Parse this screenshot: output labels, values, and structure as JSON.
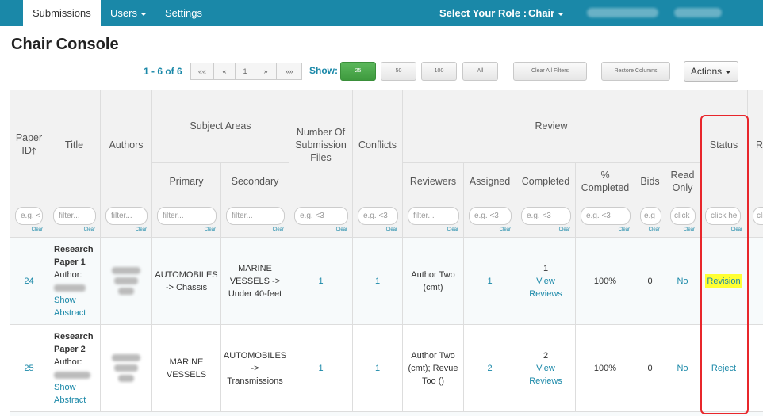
{
  "nav": {
    "tabs": [
      "Submissions",
      "Users",
      "Settings"
    ],
    "role_label": "Select Your Role :",
    "role_value": "Chair"
  },
  "page": {
    "title": "Chair Console"
  },
  "pager": {
    "range": "1 - 6 of 6",
    "first": "««",
    "prev": "«",
    "current": "1",
    "next": "»",
    "last": "»»"
  },
  "show": {
    "label": "Show:",
    "options": [
      "25",
      "50",
      "100",
      "All"
    ],
    "selected": "25"
  },
  "toolbar": {
    "clear_filters": "Clear All Filters",
    "restore_columns": "Restore Columns",
    "actions": "Actions"
  },
  "table": {
    "headers": {
      "paper_id": "Paper ID",
      "title": "Title",
      "authors": "Authors",
      "subject_areas": "Subject Areas",
      "primary": "Primary",
      "secondary": "Secondary",
      "num_files": "Number Of Submission Files",
      "conflicts": "Conflicts",
      "review": "Review",
      "reviewers": "Reviewers",
      "assigned": "Assigned",
      "completed": "Completed",
      "pct_completed": "% Completed",
      "bids": "Bids",
      "read_only": "Read Only",
      "status": "Status",
      "partial_next": "R Su"
    },
    "filters": {
      "paper_id": "e.g. <",
      "title": "filter...",
      "authors": "filter...",
      "primary": "filter...",
      "secondary": "filter...",
      "num_files": "e.g. <3",
      "conflicts": "e.g. <3",
      "reviewers": "filter...",
      "assigned": "e.g. <3",
      "completed": "e.g. <3",
      "pct_completed": "e.g. <3",
      "bids": "e.g",
      "read_only": "click",
      "status": "click he",
      "next": "cli",
      "clear": "Clear"
    },
    "rows": [
      {
        "paper_id": "24",
        "title": "Research Paper 1",
        "author_label": "Author:",
        "show_abstract": "Show Abstract",
        "primary": "AUTOMOBILES -> Chassis",
        "secondary": "MARINE VESSELS -> Under 40-feet",
        "num_files": "1",
        "conflicts": "1",
        "reviewers": "Author Two (cmt)",
        "assigned": "1",
        "completed_count": "1",
        "view_reviews": "View Reviews",
        "pct_completed": "100%",
        "bids": "0",
        "read_only": "No",
        "status": "Revision"
      },
      {
        "paper_id": "25",
        "title": "Research Paper 2",
        "author_label": "Author:",
        "show_abstract": "Show Abstract",
        "primary": "MARINE VESSELS",
        "secondary": "AUTOMOBILES -> Transmissions",
        "num_files": "1",
        "conflicts": "1",
        "reviewers": "Author Two (cmt); Revue Too ()",
        "assigned": "2",
        "completed_count": "2",
        "view_reviews": "View Reviews",
        "pct_completed": "100%",
        "bids": "0",
        "read_only": "No",
        "status": "Reject"
      }
    ]
  },
  "colors": {
    "brand": "#1a88a8",
    "active_button": "#4cae4c",
    "highlight": "#ffff33",
    "annotation": "#e8262b"
  }
}
